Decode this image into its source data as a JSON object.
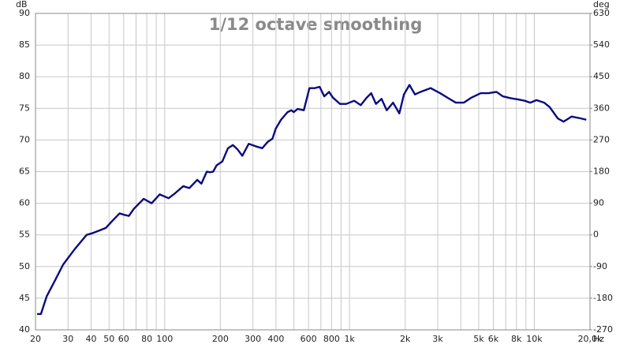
{
  "chart_data": {
    "type": "line",
    "title": "1/12 octave smoothing",
    "y_label": "dB",
    "y2_label": "deg",
    "x_label": "Hz",
    "log_x": true,
    "grid": true,
    "xlim": [
      20,
      20000
    ],
    "xticks": [
      20,
      30,
      40,
      50,
      60,
      80,
      100,
      200,
      300,
      400,
      600,
      800,
      {
        "value": 1000,
        "label": "1k"
      },
      {
        "value": 2000,
        "label": "2k"
      },
      {
        "value": 3000,
        "label": "3k"
      },
      {
        "value": 5000,
        "label": "5k"
      },
      {
        "value": 6000,
        "label": "6k"
      },
      {
        "value": 8000,
        "label": "8k"
      },
      {
        "value": 10000,
        "label": "10k"
      },
      {
        "value": 20000,
        "label": "20,0k"
      }
    ],
    "x_minor_ticks": [
      70,
      90,
      500,
      700,
      900,
      4000,
      7000,
      9000
    ],
    "ylim": [
      40,
      90
    ],
    "yticks": [
      40,
      45,
      50,
      55,
      60,
      65,
      70,
      75,
      80,
      85,
      90
    ],
    "y2lim": [
      -270,
      630
    ],
    "y2ticks": [
      -270,
      -180,
      -90,
      0,
      90,
      180,
      270,
      360,
      450,
      540,
      630
    ],
    "series": [
      {
        "color": "#0a0a80",
        "x": [
          20.4,
          21.4,
          23,
          25.5,
          28.2,
          32.7,
          37.8,
          40.9,
          48,
          52,
          57,
          60,
          64,
          68,
          77,
          85,
          94,
          105,
          114,
          126,
          136,
          150,
          158,
          169,
          176,
          183,
          191,
          205,
          220,
          234,
          248,
          263,
          285,
          311,
          337,
          361,
          383,
          399,
          426,
          462,
          485,
          499,
          524,
          566,
          607,
          650,
          689,
          730,
          775,
          813,
          888,
          960,
          1060,
          1150,
          1240,
          1310,
          1390,
          1490,
          1590,
          1720,
          1860,
          1970,
          2110,
          2260,
          2420,
          2750,
          3090,
          3470,
          3760,
          4150,
          4570,
          5130,
          5660,
          6240,
          6750,
          7440,
          8200,
          8870,
          9500,
          10270,
          11300,
          12100,
          13400,
          14400,
          15900,
          17900,
          19100
        ],
        "values": [
          42.5,
          42.5,
          45.3,
          47.8,
          50.3,
          52.8,
          55,
          55.3,
          56.1,
          57.2,
          58.4,
          58.2,
          58,
          59.1,
          60.7,
          60,
          61.4,
          60.8,
          61.6,
          62.7,
          62.4,
          63.7,
          63.1,
          65,
          64.9,
          65,
          66,
          66.6,
          68.7,
          69.2,
          68.5,
          67.5,
          69.4,
          69,
          68.7,
          69.7,
          70.2,
          71.8,
          73.2,
          74.4,
          74.7,
          74.4,
          74.9,
          74.7,
          78.2,
          78.2,
          78.4,
          76.9,
          77.6,
          76.7,
          75.7,
          75.7,
          76.2,
          75.5,
          76.7,
          77.4,
          75.7,
          76.5,
          74.7,
          75.9,
          74.2,
          77.2,
          78.7,
          77.2,
          77.6,
          78.2,
          77.4,
          76.5,
          75.9,
          75.9,
          76.7,
          77.4,
          77.4,
          77.6,
          76.9,
          76.6,
          76.4,
          76.2,
          75.9,
          76.3,
          75.9,
          75.2,
          73.4,
          72.9,
          73.7,
          73.4,
          73.2
        ]
      }
    ]
  }
}
